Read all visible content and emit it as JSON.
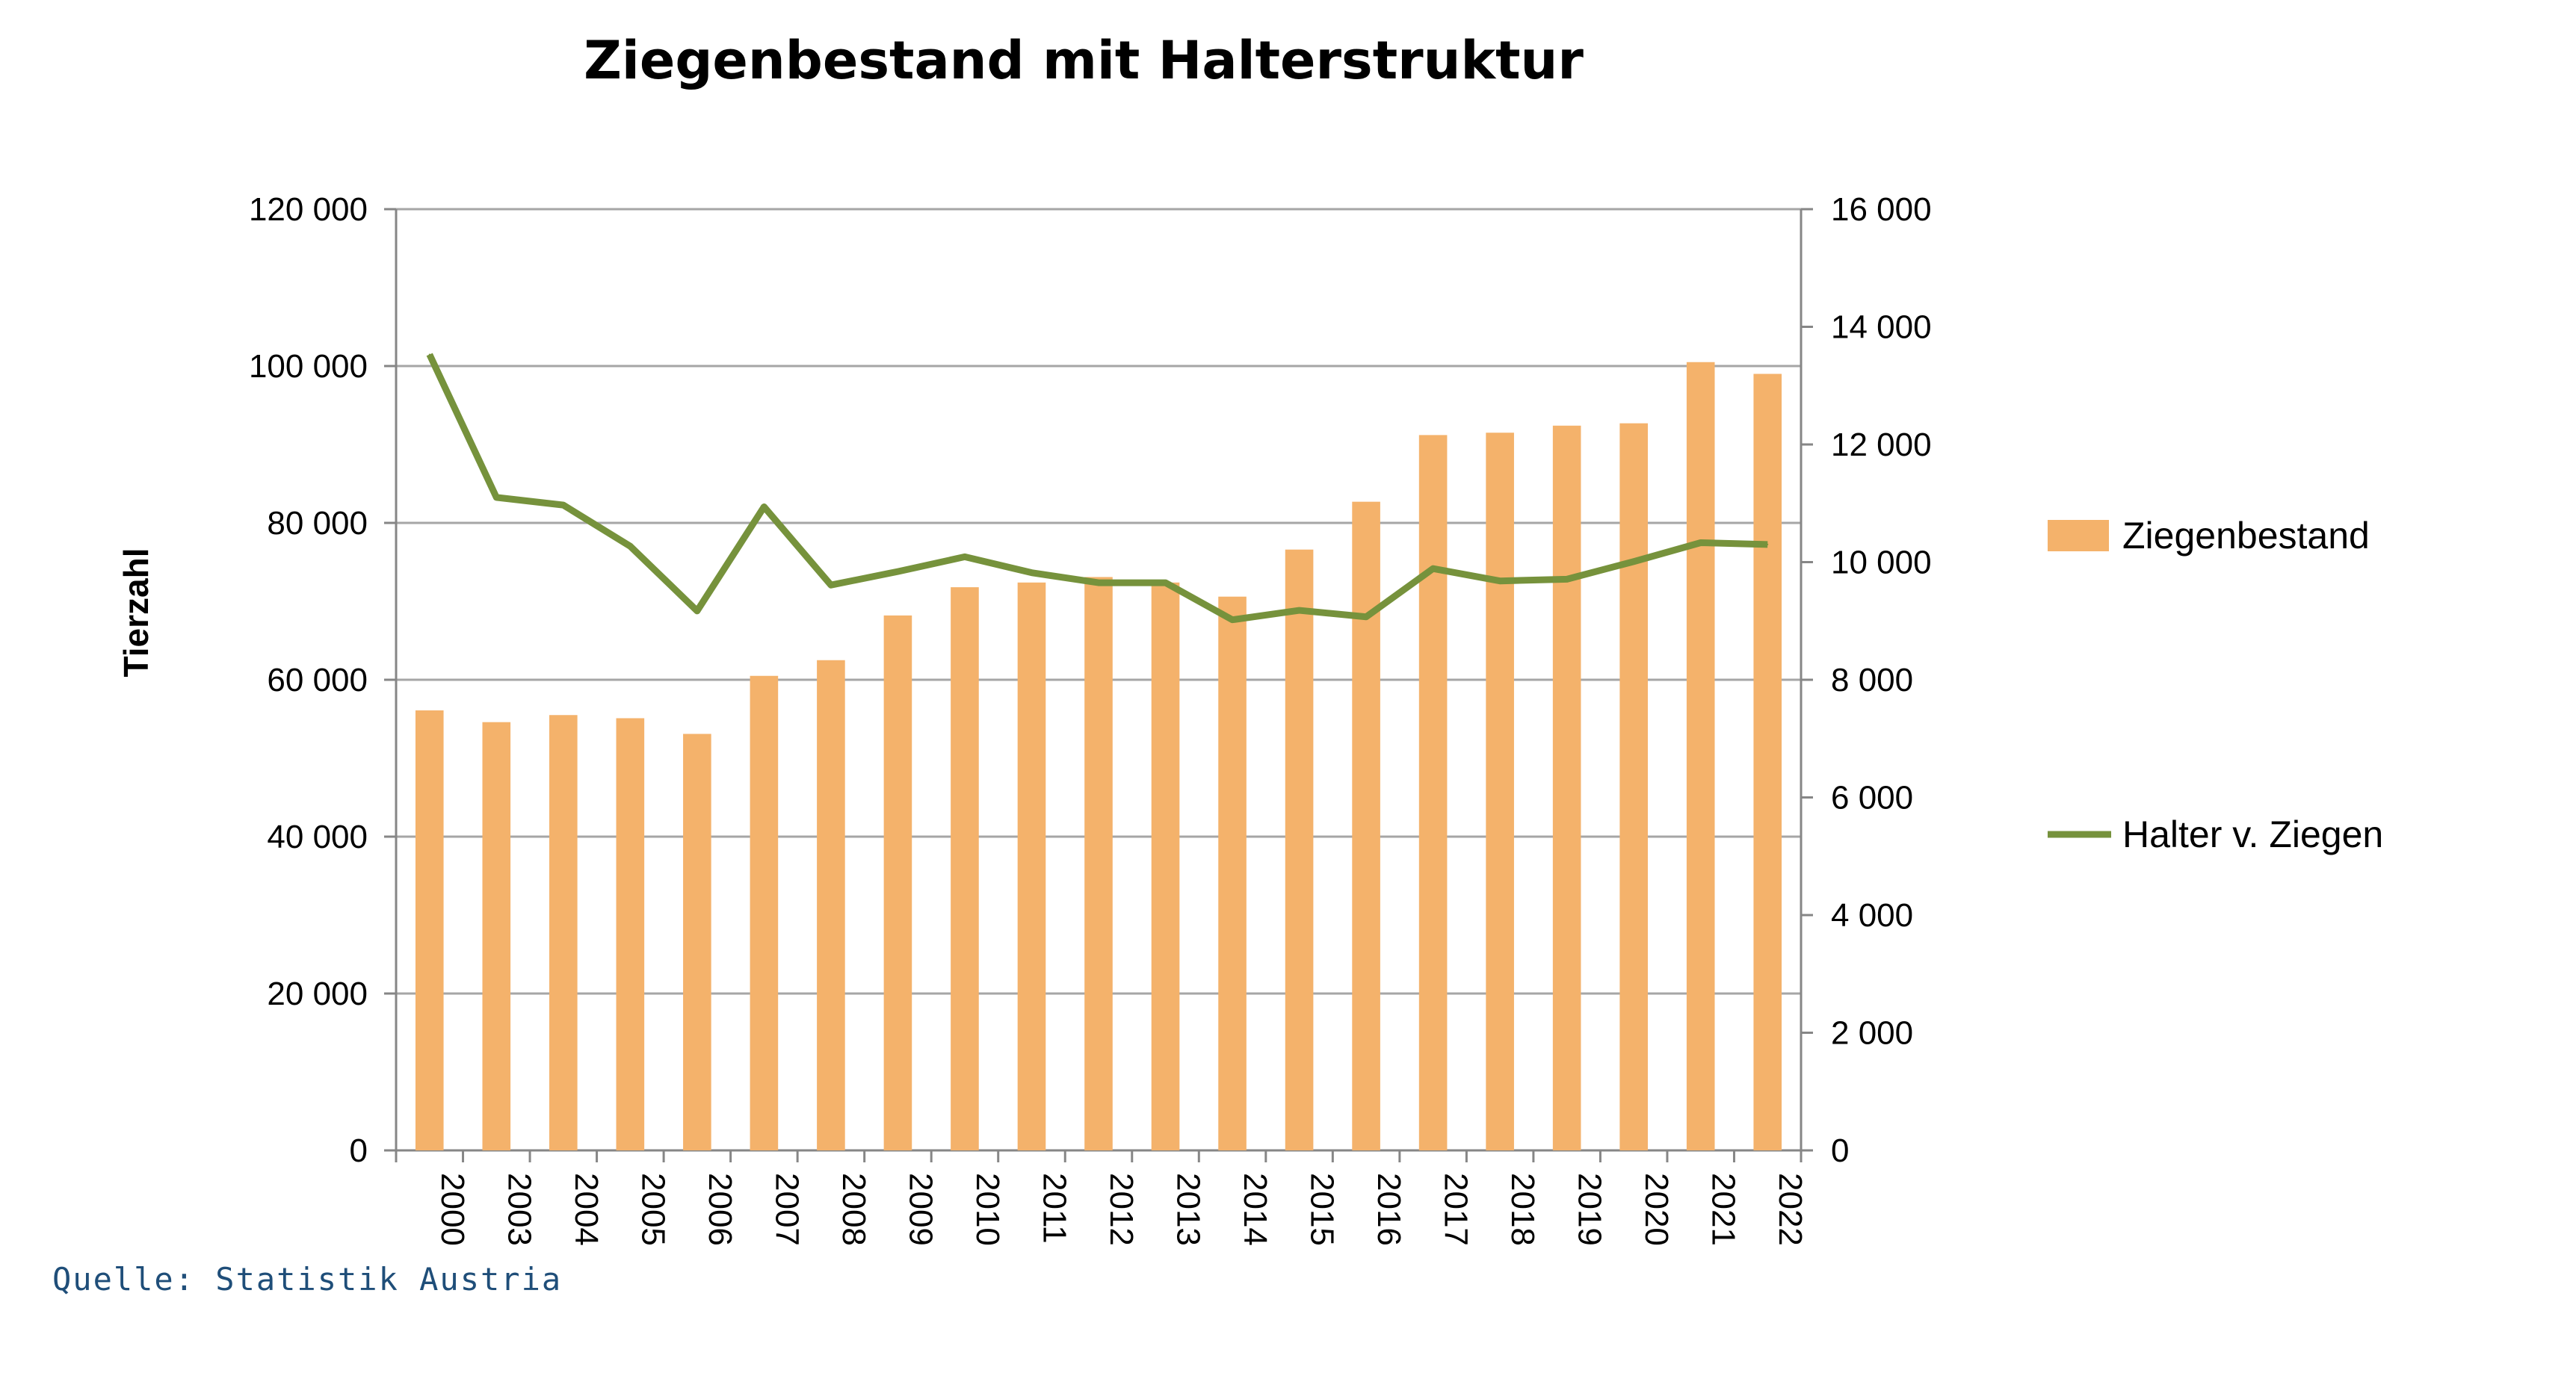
{
  "title": "Ziegenbestand mit Halterstruktur",
  "source": "Quelle: Statistik Austria",
  "chart_data": {
    "type": "bar",
    "title": "Ziegenbestand mit Halterstruktur",
    "ylabel": "Tierzahl",
    "y2label": "",
    "categories": [
      "2000",
      "2003",
      "2004",
      "2005",
      "2006",
      "2007",
      "2008",
      "2009",
      "2010",
      "2011",
      "2012",
      "2013",
      "2014",
      "2015",
      "2016",
      "2017",
      "2018",
      "2019",
      "2020",
      "2021",
      "2022"
    ],
    "ylim": [
      0,
      120000
    ],
    "y2lim": [
      0,
      16000
    ],
    "yticks": [
      "0",
      "20 000",
      "40 000",
      "60 000",
      "80 000",
      "100 000",
      "120 000"
    ],
    "y2ticks": [
      "0",
      "2 000",
      "4 000",
      "6 000",
      "8 000",
      "10 000",
      "12 000",
      "14 000",
      "16 000"
    ],
    "grid": true,
    "legend": "right",
    "series": [
      {
        "name": "Ziegenbestand",
        "type": "bar",
        "axis": "left",
        "color": "#f4b26b",
        "values": [
          56100,
          54600,
          55500,
          55100,
          53100,
          60500,
          62500,
          68200,
          71800,
          72400,
          73100,
          72400,
          70600,
          76600,
          82700,
          91200,
          91500,
          92400,
          92700,
          100500,
          99000
        ]
      },
      {
        "name": "Halter v. Ziegen",
        "type": "line",
        "axis": "right",
        "color": "#76923c",
        "values": [
          13530,
          11100,
          10970,
          10270,
          9170,
          10940,
          9610,
          9840,
          10090,
          9820,
          9650,
          9650,
          9020,
          9180,
          9070,
          9890,
          9680,
          9710,
          10010,
          10330,
          10300
        ]
      }
    ]
  }
}
